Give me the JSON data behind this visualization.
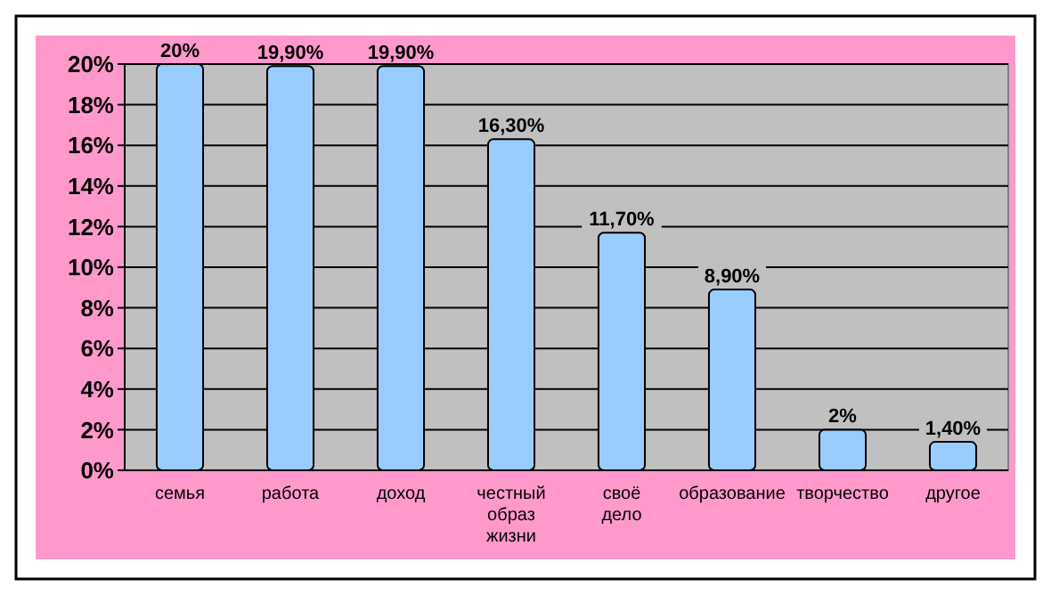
{
  "chart_data": {
    "type": "bar",
    "categories": [
      "семья",
      "работа",
      "доход",
      "честный образ жизни",
      "своё дело",
      "образование",
      "творчество",
      "другое"
    ],
    "values": [
      20,
      19.9,
      19.9,
      16.3,
      11.7,
      8.9,
      2,
      1.4
    ],
    "value_labels": [
      "20%",
      "19,90%",
      "19,90%",
      "16,30%",
      "11,70%",
      "8,90%",
      "2%",
      "1,40%"
    ],
    "color": "#99ccff",
    "ylim": [
      0,
      20
    ],
    "yticks": [
      {
        "value": 0,
        "label": "0%"
      },
      {
        "value": 2,
        "label": "2%"
      },
      {
        "value": 4,
        "label": "4%"
      },
      {
        "value": 6,
        "label": "6%"
      },
      {
        "value": 8,
        "label": "8%"
      },
      {
        "value": 10,
        "label": "10%"
      },
      {
        "value": 12,
        "label": "12%"
      },
      {
        "value": 14,
        "label": "14%"
      },
      {
        "value": 16,
        "label": "16%"
      },
      {
        "value": 18,
        "label": "18%"
      },
      {
        "value": 20,
        "label": "20%"
      }
    ],
    "grid": "y"
  }
}
